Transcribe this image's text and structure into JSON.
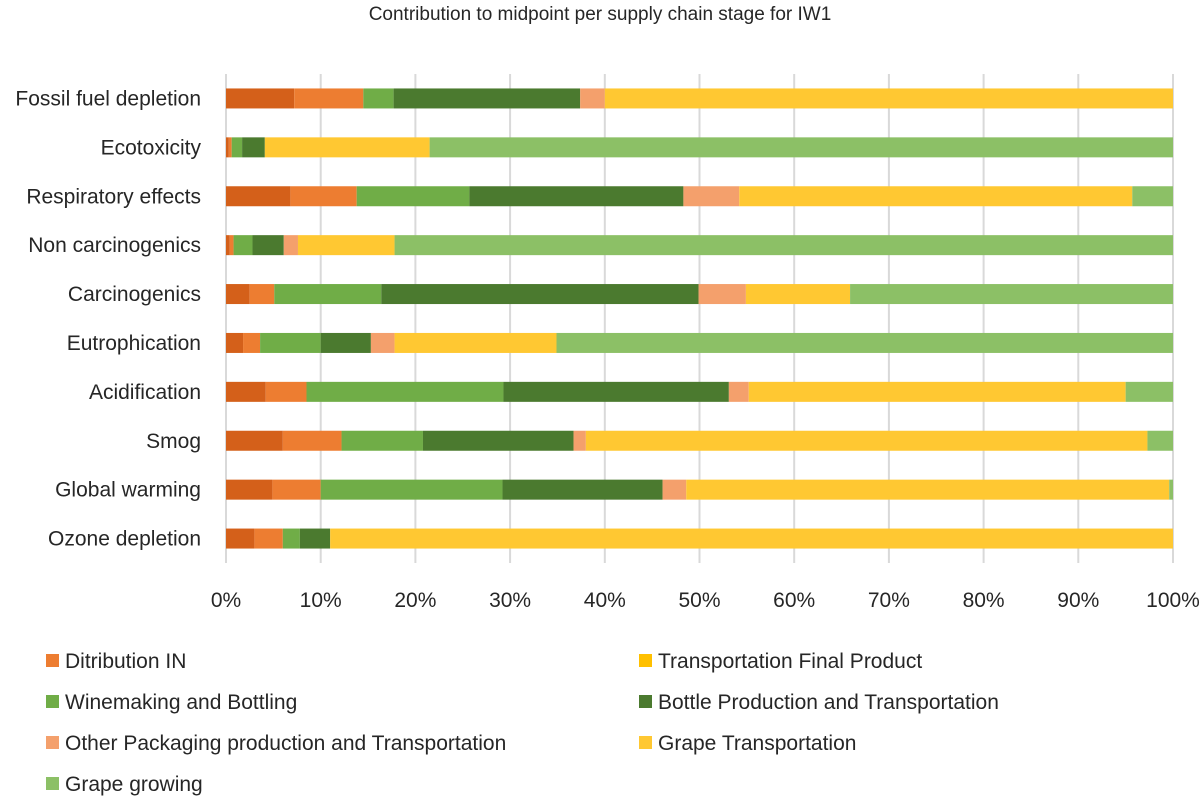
{
  "chart_data": {
    "type": "bar",
    "orientation": "horizontal",
    "stacked": "100%",
    "title": "Contribution to midpoint per supply chain stage for IW1",
    "categories": [
      "Fossil fuel depletion",
      "Ecotoxicity",
      "Respiratory effects",
      "Non carcinogenics",
      "Carcinogenics",
      "Eutrophication",
      "Acidification",
      "Smog",
      "Global warming",
      "Ozone depletion"
    ],
    "series": [
      {
        "name": "Transportation Final Product",
        "color": "#D4601A",
        "values": [
          7.2,
          0.3,
          6.8,
          0.4,
          2.5,
          1.8,
          4.2,
          6.0,
          4.9,
          3.0
        ]
      },
      {
        "name": "Ditribution IN",
        "color": "#ED7D31",
        "values": [
          7.3,
          0.3,
          7.0,
          0.4,
          2.6,
          1.8,
          4.3,
          6.2,
          5.1,
          3.0
        ]
      },
      {
        "name": "Winemaking and Bottling",
        "color": "#70AD47",
        "values": [
          3.2,
          1.1,
          11.9,
          2.0,
          11.3,
          6.4,
          20.8,
          8.6,
          19.2,
          1.8
        ]
      },
      {
        "name": "Bottle Production and Transportation",
        "color": "#4B7A2F",
        "values": [
          19.7,
          2.4,
          22.6,
          3.3,
          33.5,
          5.3,
          23.8,
          15.9,
          16.9,
          3.2
        ]
      },
      {
        "name": "Other Packaging production and Transportation",
        "color": "#F4A06C",
        "values": [
          2.6,
          0.0,
          5.9,
          1.5,
          5.0,
          2.5,
          2.1,
          1.3,
          2.5,
          0.0
        ]
      },
      {
        "name": "Grape Transportation",
        "color": "#FFC832",
        "values": [
          60.0,
          17.4,
          41.5,
          10.2,
          11.0,
          17.1,
          39.8,
          59.3,
          51.0,
          89.0
        ]
      },
      {
        "name": "Grape growing",
        "color": "#8CC066",
        "values": [
          0.0,
          78.5,
          4.3,
          82.2,
          34.1,
          65.1,
          5.0,
          2.7,
          0.4,
          0.0
        ]
      }
    ],
    "x_ticks": [
      "0%",
      "10%",
      "20%",
      "30%",
      "40%",
      "50%",
      "60%",
      "70%",
      "80%",
      "90%",
      "100%"
    ],
    "xlim": [
      0,
      100
    ],
    "grid": "vertical",
    "legend": {
      "position": "bottom",
      "columns": 2,
      "entries": [
        {
          "label": "Ditribution IN",
          "color": "#ED7D31"
        },
        {
          "label": "Transportation Final Product",
          "color": "#FFC000"
        },
        {
          "label": "Winemaking and Bottling",
          "color": "#70AD47"
        },
        {
          "label": "Bottle Production and Transportation",
          "color": "#4B7A2F"
        },
        {
          "label": "Other Packaging production and Transportation",
          "color": "#F4A06C"
        },
        {
          "label": "Grape Transportation",
          "color": "#FFC832"
        },
        {
          "label": "Grape growing",
          "color": "#8CC066"
        }
      ]
    }
  }
}
